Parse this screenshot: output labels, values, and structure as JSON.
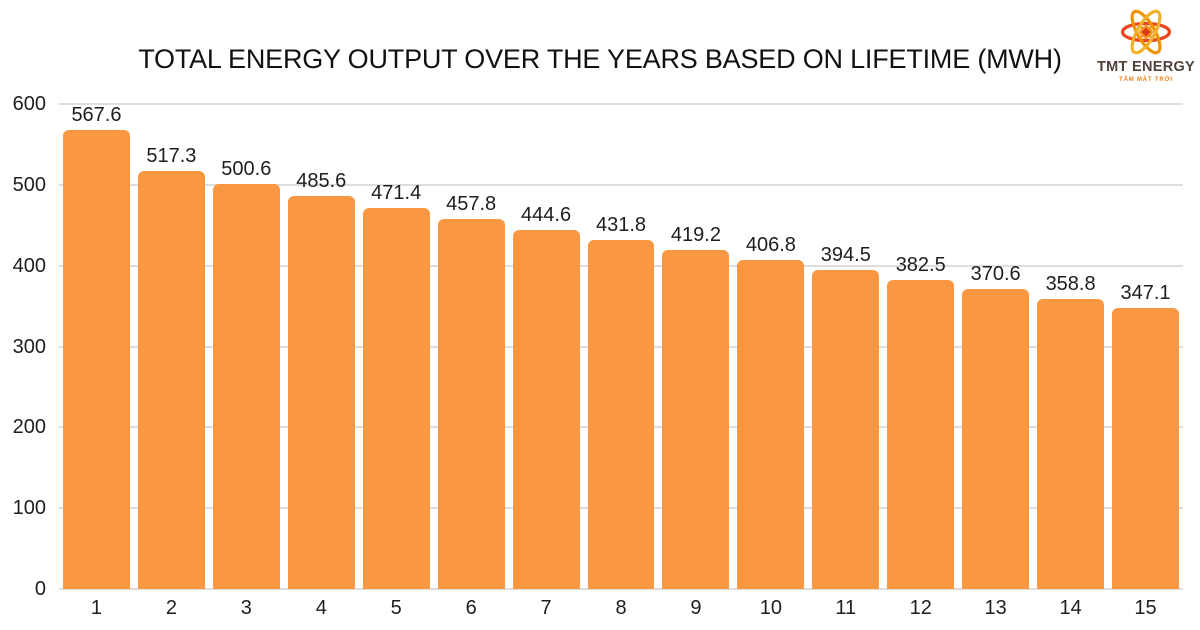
{
  "logo": {
    "name": "TMT ENERGY",
    "tagline": "TẤM MẶT TRỜI",
    "orbit_colors": [
      "#E8471F",
      "#F39200",
      "#F2B127"
    ],
    "core_color": "#F7941D",
    "core_center_color": "#DD3A16",
    "name_color": "#50403A",
    "tagline_color": "#E8821E"
  },
  "chart_data": {
    "type": "bar",
    "title": "TOTAL ENERGY OUTPUT OVER THE YEARS BASED ON LIFETIME (MWH)",
    "categories": [
      "1",
      "2",
      "3",
      "4",
      "5",
      "6",
      "7",
      "8",
      "9",
      "10",
      "11",
      "12",
      "13",
      "14",
      "15"
    ],
    "values": [
      567.6,
      517.3,
      500.6,
      485.6,
      471.4,
      457.8,
      444.6,
      431.8,
      419.2,
      406.8,
      394.5,
      382.5,
      370.6,
      358.8,
      347.1
    ],
    "xlabel": "",
    "ylabel": "",
    "ylim": [
      0,
      600
    ],
    "ytick_step": 100,
    "grid": true,
    "legend_position": "none",
    "bar_color": "#F99743",
    "gridline_color": "#DDDDDD",
    "tick_label_color": "#1E1E1E",
    "value_label_color": "#1E1E1E",
    "title_color": "#111111"
  }
}
